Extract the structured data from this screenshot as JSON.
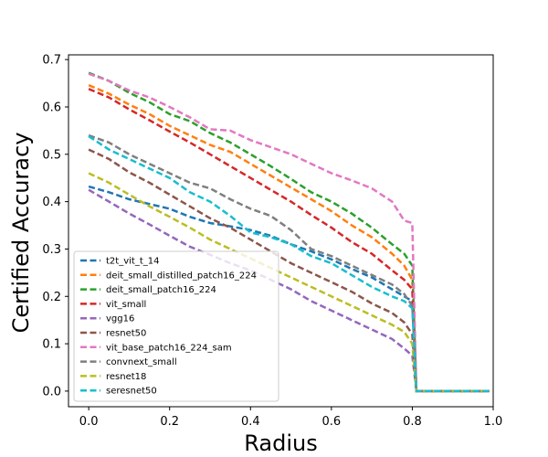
{
  "chart_data": {
    "type": "line",
    "title": "",
    "xlabel": "Radius",
    "ylabel": "Certified Accuracy",
    "xlim": [
      -0.05,
      1.0
    ],
    "ylim": [
      -0.033,
      0.71
    ],
    "xticks": [
      0.0,
      0.2,
      0.4,
      0.6,
      0.8,
      1.0
    ],
    "xtick_labels": [
      "0.0",
      "0.2",
      "0.4",
      "0.6",
      "0.8",
      "1.0"
    ],
    "yticks": [
      0.0,
      0.1,
      0.2,
      0.3,
      0.4,
      0.5,
      0.6,
      0.7
    ],
    "ytick_labels": [
      "0.0",
      "0.1",
      "0.2",
      "0.3",
      "0.4",
      "0.5",
      "0.6",
      "0.7"
    ],
    "grid": false,
    "legend_position": "lower-left",
    "line_style": "dashed",
    "series": [
      {
        "name": "t2t_vit_t_14",
        "color": "#1f77b4",
        "points": [
          [
            0.0,
            0.432
          ],
          [
            0.05,
            0.42
          ],
          [
            0.1,
            0.405
          ],
          [
            0.15,
            0.395
          ],
          [
            0.2,
            0.385
          ],
          [
            0.25,
            0.368
          ],
          [
            0.3,
            0.355
          ],
          [
            0.35,
            0.348
          ],
          [
            0.4,
            0.34
          ],
          [
            0.45,
            0.328
          ],
          [
            0.5,
            0.31
          ],
          [
            0.55,
            0.295
          ],
          [
            0.6,
            0.278
          ],
          [
            0.65,
            0.258
          ],
          [
            0.7,
            0.24
          ],
          [
            0.75,
            0.215
          ],
          [
            0.78,
            0.2
          ],
          [
            0.8,
            0.19
          ],
          [
            0.81,
            0.0
          ],
          [
            0.99,
            0.0
          ]
        ]
      },
      {
        "name": "deit_small_distilled_patch16_224",
        "color": "#ff7f0e",
        "points": [
          [
            0.0,
            0.646
          ],
          [
            0.05,
            0.628
          ],
          [
            0.1,
            0.605
          ],
          [
            0.15,
            0.585
          ],
          [
            0.2,
            0.56
          ],
          [
            0.25,
            0.54
          ],
          [
            0.3,
            0.52
          ],
          [
            0.35,
            0.505
          ],
          [
            0.4,
            0.48
          ],
          [
            0.45,
            0.455
          ],
          [
            0.5,
            0.43
          ],
          [
            0.55,
            0.405
          ],
          [
            0.6,
            0.38
          ],
          [
            0.65,
            0.35
          ],
          [
            0.7,
            0.325
          ],
          [
            0.75,
            0.29
          ],
          [
            0.78,
            0.265
          ],
          [
            0.8,
            0.235
          ],
          [
            0.81,
            0.0
          ],
          [
            0.99,
            0.0
          ]
        ]
      },
      {
        "name": "deit_small_patch16_224",
        "color": "#2ca02c",
        "points": [
          [
            0.0,
            0.672
          ],
          [
            0.05,
            0.655
          ],
          [
            0.1,
            0.63
          ],
          [
            0.15,
            0.61
          ],
          [
            0.2,
            0.585
          ],
          [
            0.25,
            0.57
          ],
          [
            0.3,
            0.545
          ],
          [
            0.35,
            0.525
          ],
          [
            0.4,
            0.5
          ],
          [
            0.45,
            0.475
          ],
          [
            0.5,
            0.448
          ],
          [
            0.55,
            0.42
          ],
          [
            0.6,
            0.4
          ],
          [
            0.65,
            0.375
          ],
          [
            0.7,
            0.345
          ],
          [
            0.75,
            0.31
          ],
          [
            0.78,
            0.29
          ],
          [
            0.8,
            0.265
          ],
          [
            0.81,
            0.0
          ],
          [
            0.99,
            0.0
          ]
        ]
      },
      {
        "name": "vit_small",
        "color": "#d62728",
        "points": [
          [
            0.0,
            0.638
          ],
          [
            0.05,
            0.62
          ],
          [
            0.1,
            0.595
          ],
          [
            0.15,
            0.572
          ],
          [
            0.2,
            0.548
          ],
          [
            0.25,
            0.525
          ],
          [
            0.3,
            0.5
          ],
          [
            0.35,
            0.475
          ],
          [
            0.4,
            0.45
          ],
          [
            0.45,
            0.425
          ],
          [
            0.5,
            0.4
          ],
          [
            0.55,
            0.372
          ],
          [
            0.6,
            0.345
          ],
          [
            0.65,
            0.315
          ],
          [
            0.7,
            0.29
          ],
          [
            0.75,
            0.255
          ],
          [
            0.78,
            0.235
          ],
          [
            0.8,
            0.215
          ],
          [
            0.81,
            0.0
          ],
          [
            0.99,
            0.0
          ]
        ]
      },
      {
        "name": "vgg16",
        "color": "#9467bd",
        "points": [
          [
            0.0,
            0.425
          ],
          [
            0.05,
            0.4
          ],
          [
            0.1,
            0.375
          ],
          [
            0.15,
            0.352
          ],
          [
            0.2,
            0.328
          ],
          [
            0.25,
            0.305
          ],
          [
            0.3,
            0.288
          ],
          [
            0.35,
            0.27
          ],
          [
            0.4,
            0.255
          ],
          [
            0.45,
            0.235
          ],
          [
            0.5,
            0.215
          ],
          [
            0.55,
            0.19
          ],
          [
            0.6,
            0.17
          ],
          [
            0.65,
            0.15
          ],
          [
            0.7,
            0.13
          ],
          [
            0.75,
            0.11
          ],
          [
            0.78,
            0.09
          ],
          [
            0.8,
            0.075
          ],
          [
            0.81,
            0.0
          ],
          [
            0.99,
            0.0
          ]
        ]
      },
      {
        "name": "resnet50",
        "color": "#8c564b",
        "points": [
          [
            0.0,
            0.51
          ],
          [
            0.05,
            0.49
          ],
          [
            0.1,
            0.462
          ],
          [
            0.15,
            0.44
          ],
          [
            0.2,
            0.415
          ],
          [
            0.25,
            0.39
          ],
          [
            0.3,
            0.365
          ],
          [
            0.35,
            0.345
          ],
          [
            0.4,
            0.32
          ],
          [
            0.45,
            0.295
          ],
          [
            0.5,
            0.27
          ],
          [
            0.55,
            0.25
          ],
          [
            0.6,
            0.23
          ],
          [
            0.65,
            0.21
          ],
          [
            0.7,
            0.185
          ],
          [
            0.75,
            0.165
          ],
          [
            0.78,
            0.145
          ],
          [
            0.8,
            0.12
          ],
          [
            0.81,
            0.0
          ],
          [
            0.99,
            0.0
          ]
        ]
      },
      {
        "name": "vit_base_patch16_224_sam",
        "color": "#e377c2",
        "points": [
          [
            0.0,
            0.67
          ],
          [
            0.05,
            0.655
          ],
          [
            0.1,
            0.635
          ],
          [
            0.15,
            0.62
          ],
          [
            0.2,
            0.6
          ],
          [
            0.25,
            0.578
          ],
          [
            0.3,
            0.553
          ],
          [
            0.35,
            0.55
          ],
          [
            0.4,
            0.53
          ],
          [
            0.45,
            0.515
          ],
          [
            0.5,
            0.5
          ],
          [
            0.55,
            0.48
          ],
          [
            0.6,
            0.46
          ],
          [
            0.65,
            0.445
          ],
          [
            0.7,
            0.428
          ],
          [
            0.75,
            0.4
          ],
          [
            0.78,
            0.36
          ],
          [
            0.8,
            0.355
          ],
          [
            0.81,
            0.0
          ],
          [
            0.99,
            0.0
          ]
        ]
      },
      {
        "name": "convnext_small",
        "color": "#7f7f7f",
        "points": [
          [
            0.0,
            0.54
          ],
          [
            0.05,
            0.525
          ],
          [
            0.1,
            0.5
          ],
          [
            0.15,
            0.48
          ],
          [
            0.2,
            0.46
          ],
          [
            0.25,
            0.44
          ],
          [
            0.3,
            0.428
          ],
          [
            0.35,
            0.405
          ],
          [
            0.4,
            0.385
          ],
          [
            0.45,
            0.37
          ],
          [
            0.5,
            0.34
          ],
          [
            0.55,
            0.3
          ],
          [
            0.6,
            0.285
          ],
          [
            0.65,
            0.265
          ],
          [
            0.7,
            0.245
          ],
          [
            0.75,
            0.225
          ],
          [
            0.78,
            0.205
          ],
          [
            0.8,
            0.18
          ],
          [
            0.81,
            0.0
          ],
          [
            0.99,
            0.0
          ]
        ]
      },
      {
        "name": "resnet18",
        "color": "#bcbd22",
        "points": [
          [
            0.0,
            0.46
          ],
          [
            0.05,
            0.44
          ],
          [
            0.1,
            0.415
          ],
          [
            0.15,
            0.39
          ],
          [
            0.2,
            0.368
          ],
          [
            0.25,
            0.345
          ],
          [
            0.3,
            0.32
          ],
          [
            0.35,
            0.3
          ],
          [
            0.4,
            0.28
          ],
          [
            0.45,
            0.26
          ],
          [
            0.5,
            0.24
          ],
          [
            0.55,
            0.22
          ],
          [
            0.6,
            0.2
          ],
          [
            0.65,
            0.18
          ],
          [
            0.7,
            0.16
          ],
          [
            0.75,
            0.14
          ],
          [
            0.78,
            0.125
          ],
          [
            0.8,
            0.1
          ],
          [
            0.81,
            0.0
          ],
          [
            0.99,
            0.0
          ]
        ]
      },
      {
        "name": "seresnet50",
        "color": "#17becf",
        "points": [
          [
            0.0,
            0.538
          ],
          [
            0.05,
            0.51
          ],
          [
            0.1,
            0.49
          ],
          [
            0.15,
            0.47
          ],
          [
            0.2,
            0.45
          ],
          [
            0.25,
            0.42
          ],
          [
            0.3,
            0.4
          ],
          [
            0.35,
            0.37
          ],
          [
            0.4,
            0.335
          ],
          [
            0.45,
            0.325
          ],
          [
            0.5,
            0.31
          ],
          [
            0.55,
            0.285
          ],
          [
            0.6,
            0.27
          ],
          [
            0.65,
            0.245
          ],
          [
            0.7,
            0.22
          ],
          [
            0.75,
            0.2
          ],
          [
            0.78,
            0.19
          ],
          [
            0.8,
            0.175
          ],
          [
            0.81,
            0.0
          ],
          [
            0.99,
            0.0
          ]
        ]
      }
    ]
  }
}
